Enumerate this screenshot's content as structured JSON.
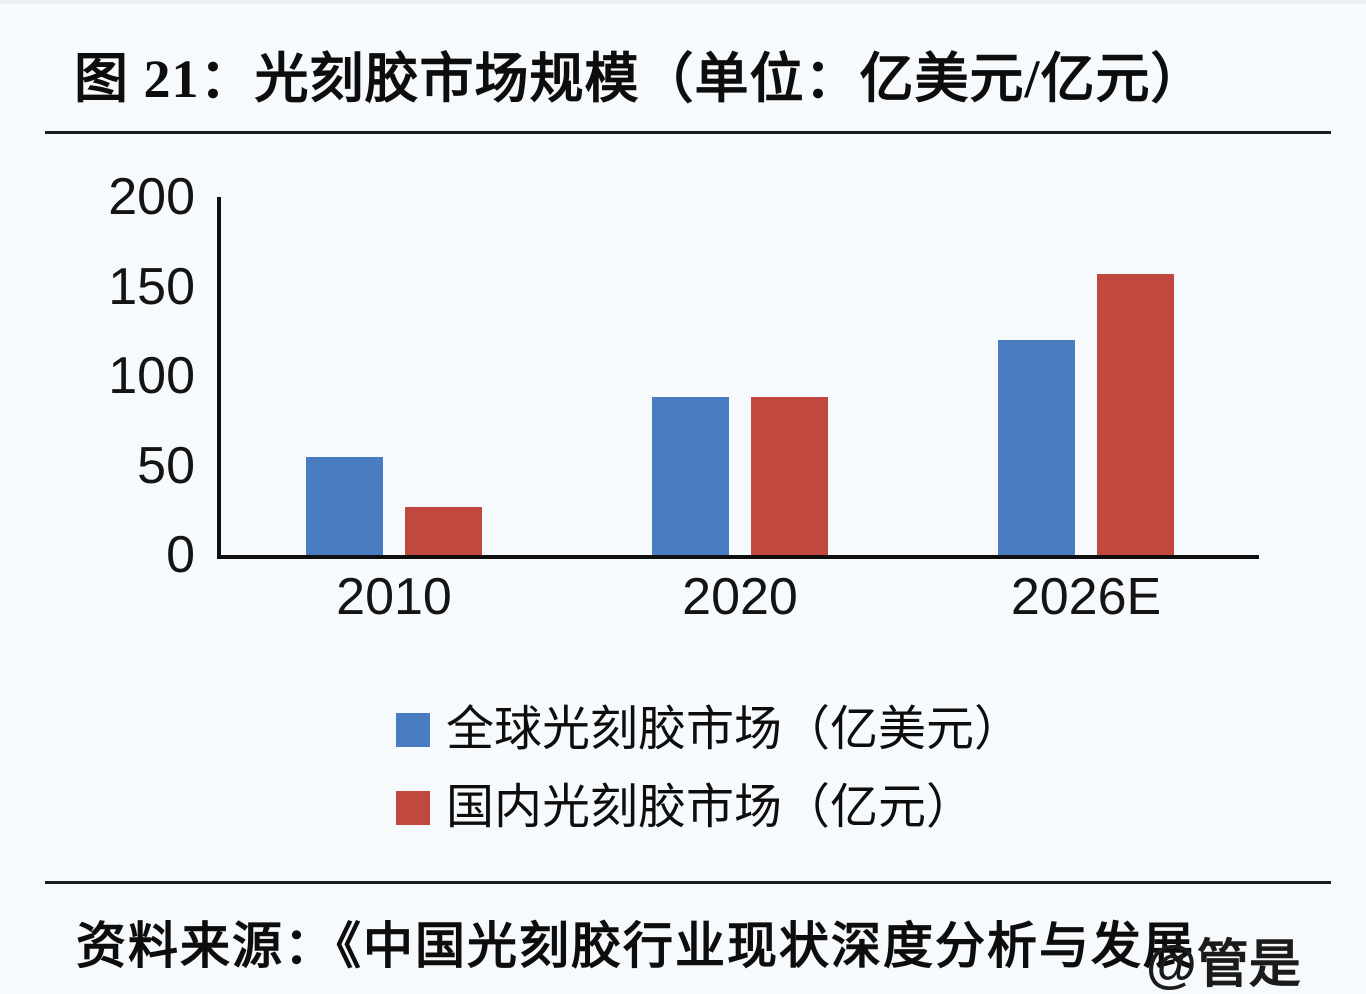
{
  "page": {
    "title": "图 21：光刻胶市场规模（单位：亿美元/亿元）",
    "source_line": "资料来源：《中国光刻胶行业现状深度分析与发展",
    "watermark": "@管是"
  },
  "colors": {
    "global_series_blue": "#4A7CC2",
    "domestic_series_red": "#C1483F",
    "axis": "#0F0F0F",
    "text": "#0D0D0D",
    "background": "#F7FAFD"
  },
  "chart_data": {
    "type": "bar",
    "categories": [
      "2010",
      "2020",
      "2026E"
    ],
    "series": [
      {
        "name": "全球光刻胶市场（亿美元）",
        "color": "#4A7CC2",
        "values": [
          55,
          88,
          120
        ]
      },
      {
        "name": "国内光刻胶市场（亿元）",
        "color": "#C1483F",
        "values": [
          27,
          88,
          157
        ]
      }
    ],
    "title": "光刻胶市场规模（单位：亿美元/亿元）",
    "xlabel": "",
    "ylabel": "",
    "ylim": [
      0,
      200
    ],
    "yticks": [
      0,
      50,
      100,
      150,
      200
    ],
    "grid": false,
    "legend_position": "bottom"
  }
}
